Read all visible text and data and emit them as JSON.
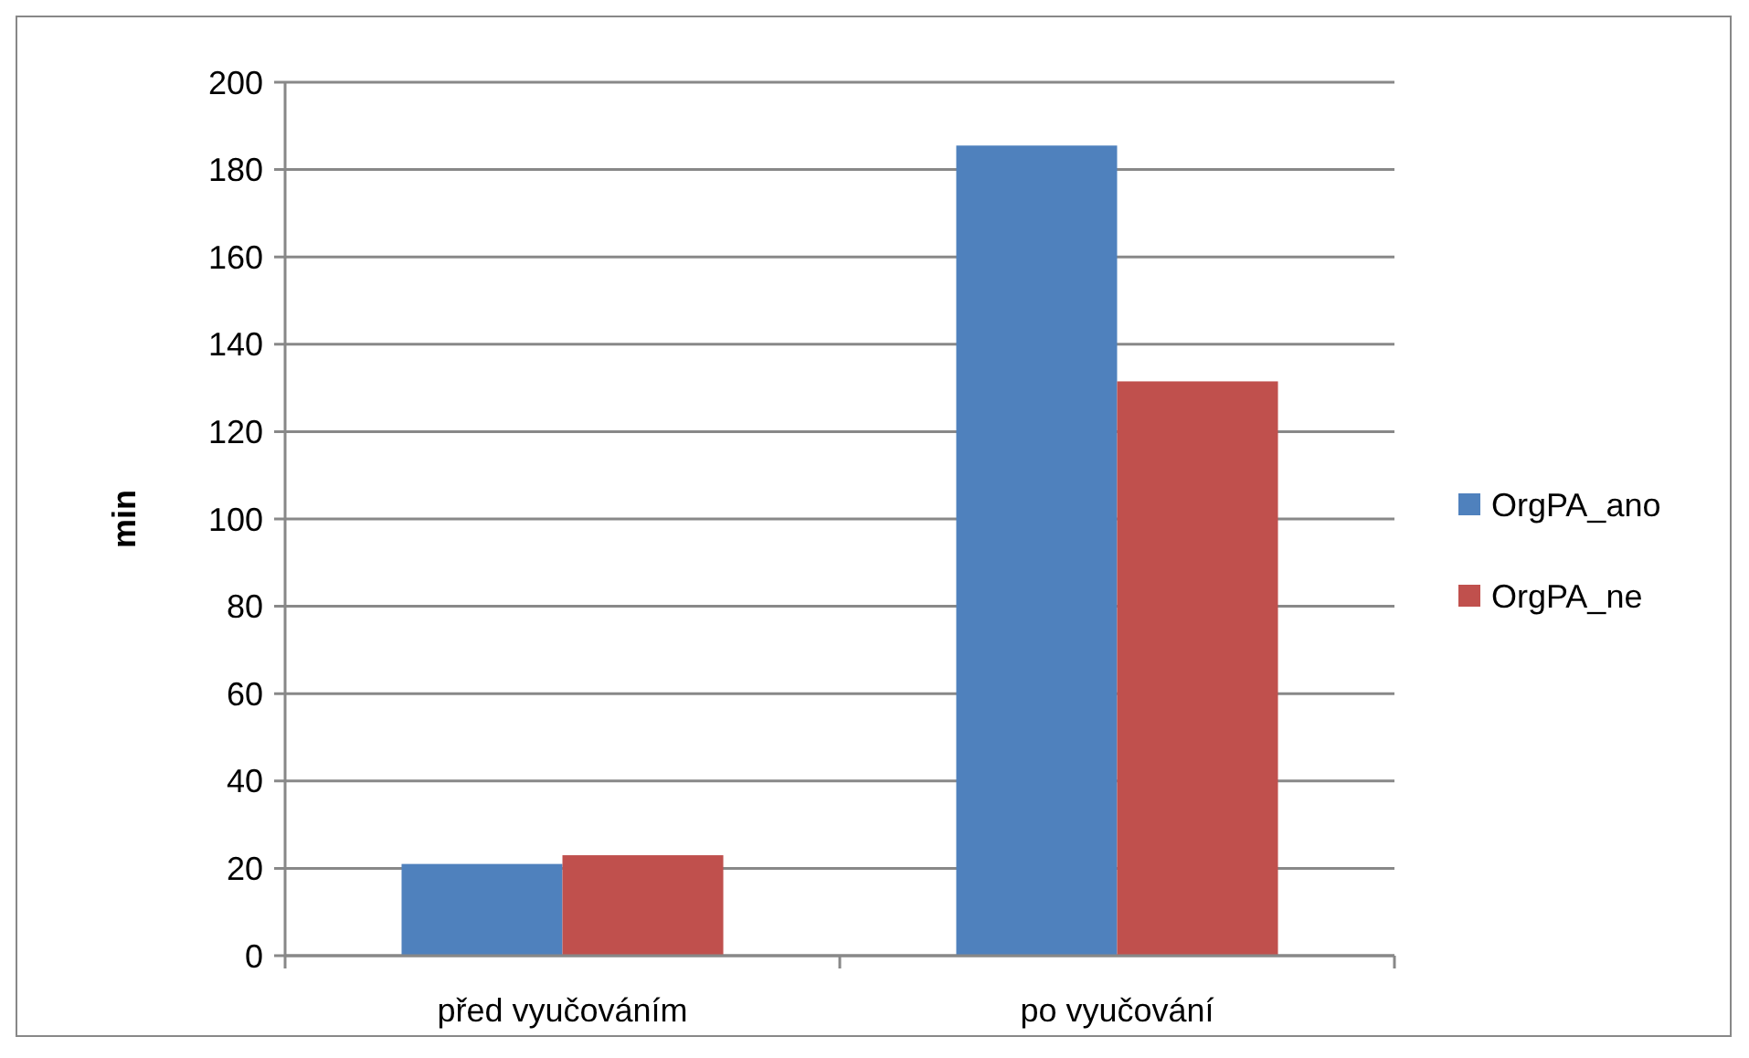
{
  "chart_data": {
    "type": "bar",
    "ylabel": "min",
    "categories": [
      "před vyučováním",
      "po vyučování"
    ],
    "series": [
      {
        "name": "OrgPA_ano",
        "color": "#4f81bd",
        "values": [
          21,
          185.5
        ]
      },
      {
        "name": "OrgPA_ne",
        "color": "#c0504d",
        "values": [
          23,
          131.5
        ]
      }
    ],
    "ylim": [
      0,
      200
    ],
    "yticks": [
      0,
      20,
      40,
      60,
      80,
      100,
      120,
      140,
      160,
      180,
      200
    ],
    "grid": "y",
    "legend": "right"
  }
}
